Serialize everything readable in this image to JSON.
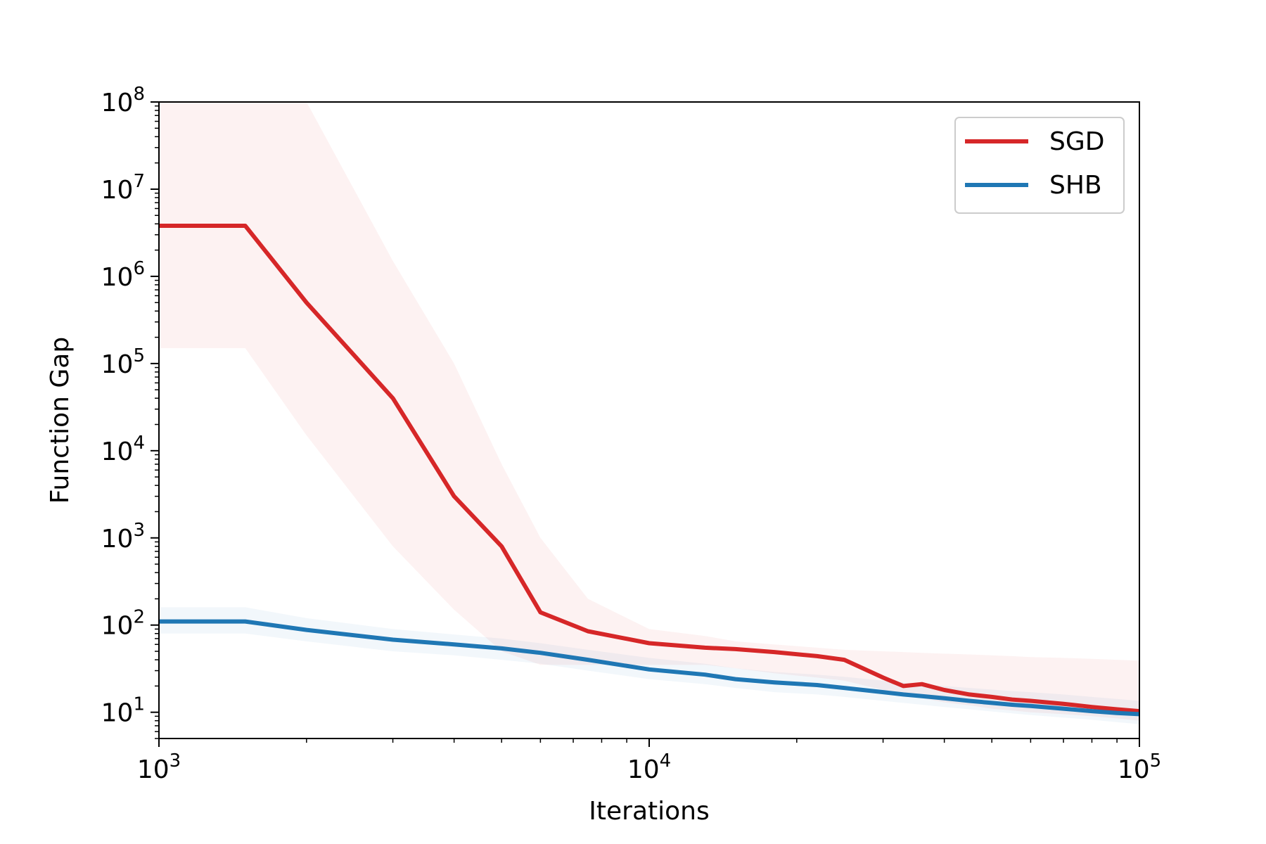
{
  "chart_data": {
    "type": "line",
    "xlabel": "Iterations",
    "ylabel": "Function Gap",
    "x_scale": "log",
    "y_scale": "log",
    "xlim": [
      1000,
      100000
    ],
    "ylim": [
      5,
      100000000
    ],
    "x_ticks": [
      {
        "value": 1000,
        "base": "10",
        "exp": "3"
      },
      {
        "value": 10000,
        "base": "10",
        "exp": "4"
      },
      {
        "value": 100000,
        "base": "10",
        "exp": "5"
      }
    ],
    "y_ticks": [
      {
        "value": 10,
        "base": "10",
        "exp": "1"
      },
      {
        "value": 100,
        "base": "10",
        "exp": "2"
      },
      {
        "value": 1000,
        "base": "10",
        "exp": "3"
      },
      {
        "value": 10000,
        "base": "10",
        "exp": "4"
      },
      {
        "value": 100000,
        "base": "10",
        "exp": "5"
      },
      {
        "value": 1000000,
        "base": "10",
        "exp": "6"
      },
      {
        "value": 10000000,
        "base": "10",
        "exp": "7"
      },
      {
        "value": 100000000,
        "base": "10",
        "exp": "8"
      }
    ],
    "grid": false,
    "legend": {
      "position": "top-right"
    },
    "series": [
      {
        "name": "SGD",
        "color": "#d62728",
        "band_color": "#d62728",
        "x": [
          1000,
          1500,
          2000,
          3000,
          4000,
          5000,
          6000,
          7500,
          10000,
          13000,
          15000,
          18000,
          22000,
          25000,
          30000,
          33000,
          36000,
          40000,
          45000,
          50000,
          55000,
          60000,
          70000,
          80000,
          90000,
          100000
        ],
        "y": [
          3800000,
          3800000,
          500000,
          40000,
          3000,
          800,
          140,
          85,
          62,
          55,
          53,
          49,
          44,
          40,
          25,
          20,
          21,
          18,
          16,
          15,
          14,
          13.5,
          12.5,
          11.5,
          10.8,
          10.3
        ],
        "lower": [
          150000,
          150000,
          15000,
          800,
          150,
          50,
          35,
          35,
          35,
          35,
          32,
          28,
          25,
          23,
          18,
          15.5,
          14.5,
          13,
          12,
          11,
          10.5,
          10,
          9.5,
          9,
          8.5,
          8
        ],
        "upper": [
          100000000,
          100000000,
          100000000,
          1500000,
          100000,
          7000,
          1000,
          200,
          90,
          75,
          65,
          60,
          55,
          52,
          50,
          49,
          48,
          47,
          46,
          45,
          44,
          43,
          42,
          41,
          40,
          39
        ]
      },
      {
        "name": "SHB",
        "color": "#1f77b4",
        "band_color": "#1f77b4",
        "x": [
          1000,
          1500,
          2000,
          3000,
          4000,
          5000,
          6000,
          7500,
          10000,
          13000,
          15000,
          18000,
          22000,
          25000,
          30000,
          33000,
          36000,
          40000,
          45000,
          50000,
          55000,
          60000,
          70000,
          80000,
          90000,
          100000
        ],
        "y": [
          110,
          110,
          88,
          68,
          60,
          54,
          48,
          40,
          31,
          27,
          24,
          22,
          20.5,
          19,
          17,
          16,
          15.3,
          14.5,
          13.5,
          12.8,
          12.2,
          11.8,
          11,
          10.3,
          9.8,
          9.5
        ],
        "lower": [
          80,
          80,
          65,
          50,
          45,
          40,
          36,
          30,
          24,
          21,
          19,
          17,
          16,
          15,
          13.5,
          12.8,
          12.2,
          11.5,
          10.8,
          10.2,
          9.7,
          9.3,
          8.7,
          8.2,
          7.7,
          7.3
        ],
        "upper": [
          160,
          160,
          120,
          90,
          78,
          70,
          62,
          52,
          42,
          36,
          32,
          29,
          27,
          25.5,
          23,
          22,
          21,
          20,
          19,
          18.2,
          17.5,
          17,
          16,
          15,
          14.2,
          13.5
        ]
      }
    ]
  }
}
